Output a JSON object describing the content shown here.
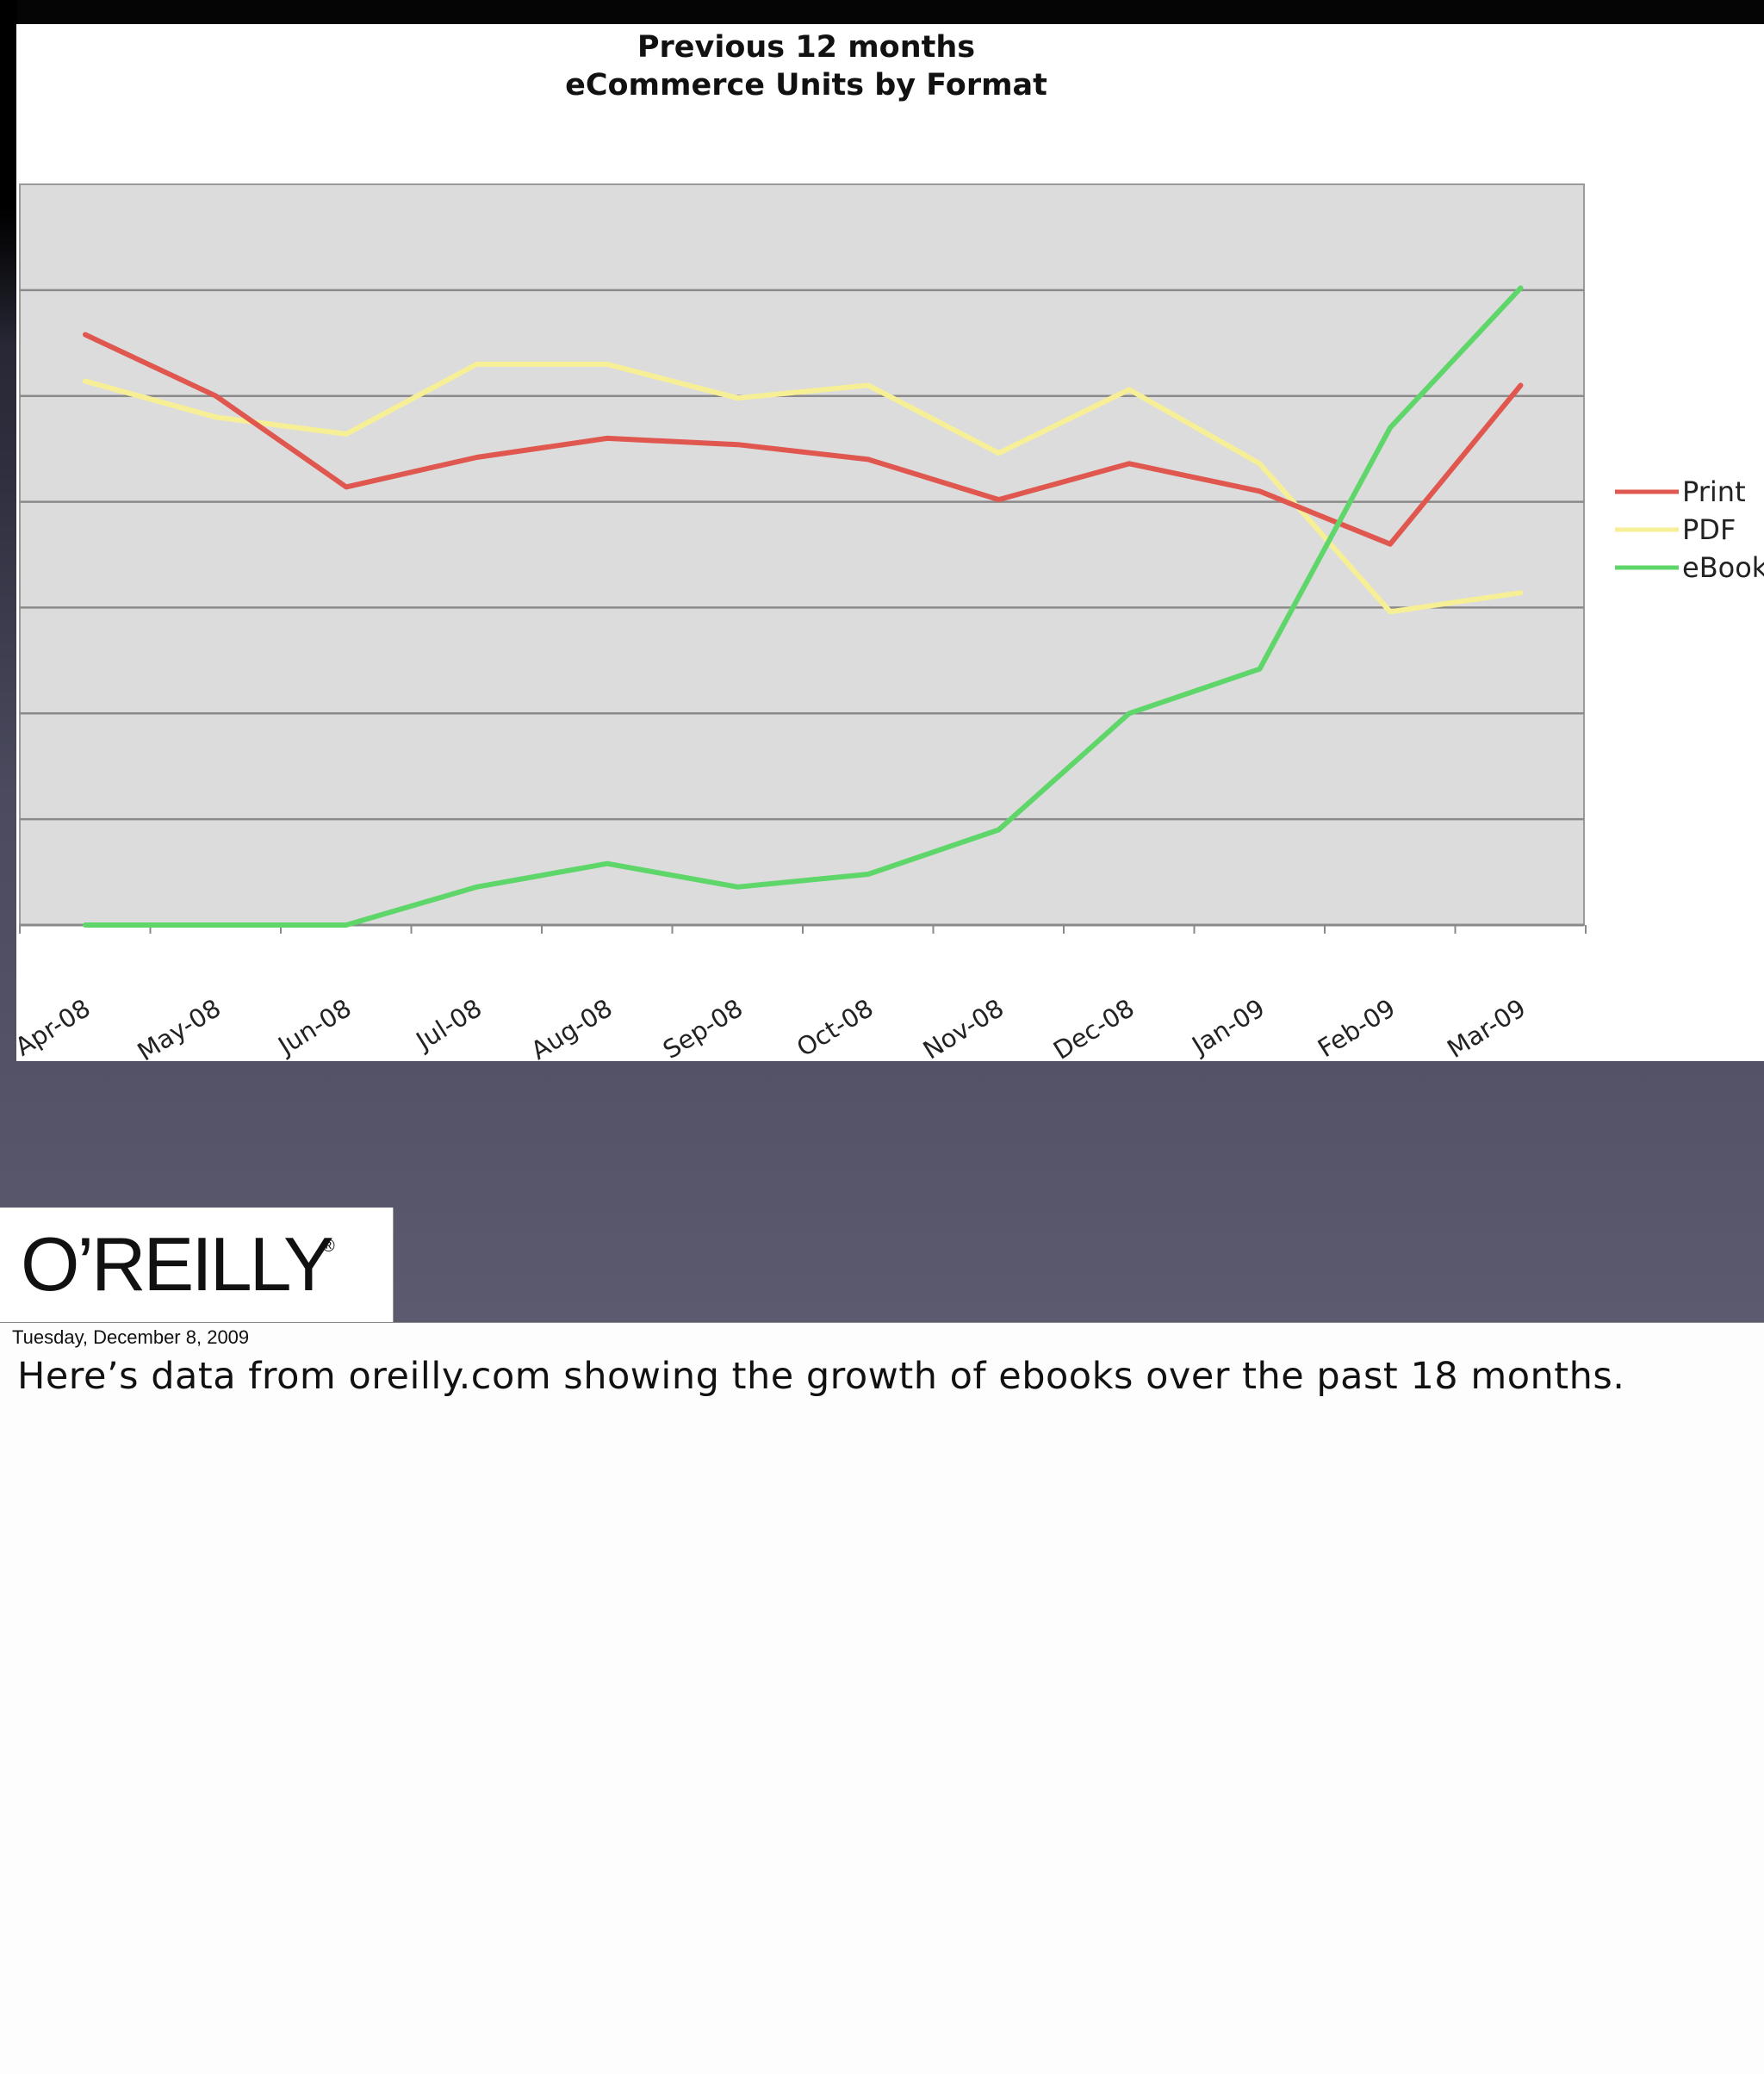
{
  "slide": {
    "date": "Tuesday, December 8, 2009",
    "notes": "Here’s data from oreilly.com showing the growth of ebooks over the past 18 months.",
    "logo": {
      "text": "O’REILLY",
      "mark": "®"
    }
  },
  "chart_data": {
    "type": "line",
    "title": "Previous 12 months",
    "subtitle": "eCommerce Units by Format",
    "categories": [
      "Apr-08",
      "May-08",
      "Jun-08",
      "Jul-08",
      "Aug-08",
      "Sep-08",
      "Oct-08",
      "Nov-08",
      "Dec-08",
      "Jan-09",
      "Feb-09",
      "Mar-09"
    ],
    "ylim": [
      0,
      7
    ],
    "y_tick_labels_visible": false,
    "grid": true,
    "legend": "right",
    "series": [
      {
        "name": "Print",
        "color": "#e0574f",
        "values": [
          5.58,
          5.0,
          4.14,
          4.42,
          4.6,
          4.54,
          4.4,
          4.02,
          4.36,
          4.1,
          3.6,
          5.1
        ]
      },
      {
        "name": "PDF",
        "color": "#f7ef96",
        "values": [
          5.14,
          4.8,
          4.64,
          5.3,
          5.3,
          4.98,
          5.1,
          4.46,
          5.06,
          4.36,
          2.96,
          3.14
        ]
      },
      {
        "name": "eBook",
        "color": "#5fd66a",
        "values": [
          0.0,
          0.0,
          0.0,
          0.36,
          0.58,
          0.36,
          0.48,
          0.9,
          2.0,
          2.42,
          4.7,
          6.02
        ]
      }
    ]
  }
}
